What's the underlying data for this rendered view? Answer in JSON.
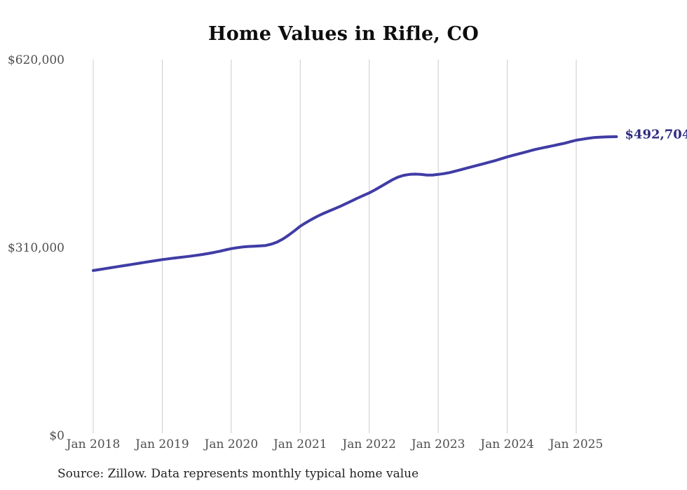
{
  "chart_data": {
    "type": "line",
    "title": "Home Values in Rifle, CO",
    "source": "Source: Zillow. Data represents monthly typical home value",
    "end_label": "$492,704",
    "end_value": 492704,
    "x_ticks": [
      "Jan 2018",
      "Jan 2019",
      "Jan 2020",
      "Jan 2021",
      "Jan 2022",
      "Jan 2023",
      "Jan 2024",
      "Jan 2025"
    ],
    "y_ticks": [
      {
        "label": "$0",
        "value": 0
      },
      {
        "label": "$310,000",
        "value": 310000
      },
      {
        "label": "$620,000",
        "value": 620000
      }
    ],
    "ylim": [
      0,
      620000
    ],
    "grid": "vertical-only",
    "legend": "none",
    "colors": {
      "line": "#403CA5",
      "end_label": "#2E2B80",
      "tick": "#4F4F4F",
      "grid": "#CBCBCB",
      "title": "#0D0D0D",
      "source": "#222222"
    },
    "series": [
      {
        "name": "Typical home value (monthly)",
        "start_month": "2018-01",
        "end_month": "2025-08",
        "values": [
          272000,
          273500,
          275000,
          276500,
          278000,
          279500,
          281000,
          282500,
          284000,
          285500,
          287000,
          288500,
          290000,
          291200,
          292400,
          293500,
          294600,
          295800,
          297000,
          298400,
          300000,
          301800,
          303800,
          305900,
          308000,
          309500,
          310800,
          311600,
          312100,
          312500,
          313200,
          315500,
          319000,
          324000,
          330500,
          337500,
          345000,
          351000,
          356500,
          361500,
          366000,
          370000,
          374000,
          378000,
          382500,
          387000,
          391500,
          395800,
          400000,
          405000,
          410500,
          416000,
          421500,
          426000,
          429000,
          430500,
          431000,
          430500,
          429500,
          429500,
          430500,
          431800,
          433500,
          436000,
          438500,
          441000,
          443500,
          446000,
          448500,
          451000,
          453500,
          456500,
          459500,
          462000,
          464500,
          467000,
          469500,
          472000,
          474000,
          476000,
          478000,
          480000,
          482000,
          484500,
          487000,
          488500,
          490000,
          491200,
          491900,
          492300,
          492600,
          492704
        ]
      }
    ]
  }
}
